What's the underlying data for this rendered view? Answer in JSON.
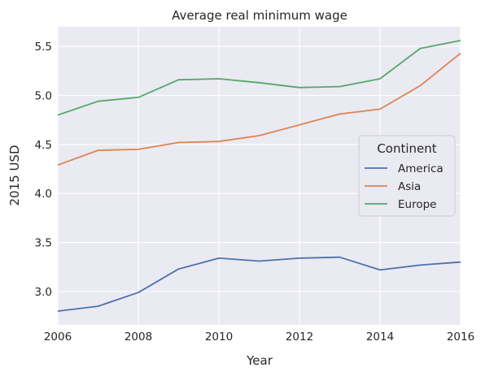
{
  "chart_data": {
    "type": "line",
    "title": "Average real minimum wage",
    "xlabel": "Year",
    "ylabel": "2015 USD",
    "x": [
      2006,
      2007,
      2008,
      2009,
      2010,
      2011,
      2012,
      2013,
      2014,
      2015,
      2016
    ],
    "xlim": [
      2006,
      2016
    ],
    "ylim": [
      2.66,
      5.7
    ],
    "xticks": [
      2006,
      2008,
      2010,
      2012,
      2014,
      2016
    ],
    "yticks": [
      3.0,
      3.5,
      4.0,
      4.5,
      5.0,
      5.5
    ],
    "ytick_labels": [
      "3.0",
      "3.5",
      "4.0",
      "4.5",
      "5.0",
      "5.5"
    ],
    "grid": true,
    "legend_title": "Continent",
    "legend_placement": "center-right",
    "series": [
      {
        "name": "America",
        "color": "#4c72b0",
        "values": [
          2.8,
          2.85,
          2.99,
          3.23,
          3.34,
          3.31,
          3.34,
          3.35,
          3.22,
          3.27,
          3.3
        ]
      },
      {
        "name": "Asia",
        "color": "#dd8452",
        "values": [
          4.29,
          4.44,
          4.45,
          4.52,
          4.53,
          4.59,
          4.7,
          4.81,
          4.86,
          5.1,
          5.43
        ]
      },
      {
        "name": "Europe",
        "color": "#55a868",
        "values": [
          4.8,
          4.94,
          4.98,
          5.16,
          5.17,
          5.13,
          5.08,
          5.09,
          5.17,
          5.48,
          5.56
        ]
      }
    ]
  }
}
